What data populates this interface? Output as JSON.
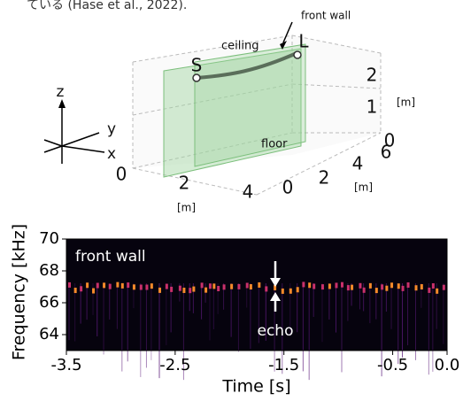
{
  "caption_fragment": "ている (Hase et al., 2022).",
  "room_plot": {
    "annotations": {
      "start": "S",
      "end": "L",
      "ceiling": "ceiling",
      "front_wall": "front wall",
      "floor": "floor"
    },
    "axis_names": {
      "z": "z",
      "y": "y",
      "x": "x"
    },
    "z_ticks": [
      0,
      1,
      2
    ],
    "z_unit": "[m]",
    "y_ticks": [
      0,
      2,
      4,
      6
    ],
    "y_unit": "[m]",
    "x_ticks": [
      0,
      2,
      4
    ],
    "x_unit": "[m]"
  },
  "chart_data": {
    "type": "spectrogram",
    "xlabel": "Time [s]",
    "ylabel": "Frequency [kHz]",
    "xlim": [
      -3.5,
      0
    ],
    "xticks": [
      -3.5,
      -2.5,
      -1.5,
      -0.5,
      {
        "value": 0,
        "label": "0.0"
      }
    ],
    "ylim": [
      63,
      70
    ],
    "yticks": [
      64,
      66,
      68,
      70
    ],
    "annotations": {
      "label": "front wall",
      "echo": "echo"
    }
  }
}
